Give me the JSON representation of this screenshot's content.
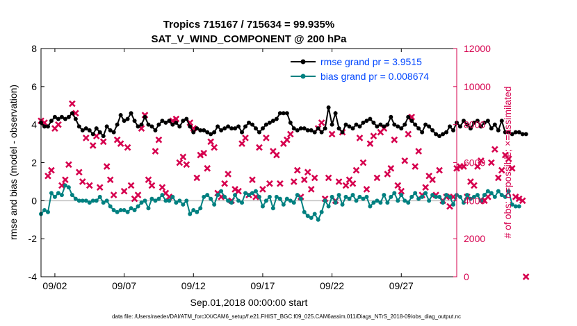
{
  "chart_data": {
    "type": "line",
    "title": "Tropics 715167 / 715634 = 99.935%",
    "subtitle": "SAT_V_WIND_COMPONENT @ 200 hPa",
    "xlabel": "Sep.01,2018 00:00:00 start",
    "ylabel_left": "rmse and bias (model - observation)",
    "ylabel_right": "# of obs: o=possible; ×=assimilated",
    "xlim": [
      0.5,
      30.5
    ],
    "ylim_left": [
      -4,
      8
    ],
    "ylim_right": [
      0,
      12000
    ],
    "x_ticks": [
      1.5,
      6.5,
      11.5,
      16.5,
      21.5,
      26.5
    ],
    "x_tick_labels": [
      "09/02",
      "09/07",
      "09/12",
      "09/17",
      "09/22",
      "09/27"
    ],
    "y_ticks_left": [
      -4,
      -2,
      0,
      2,
      4,
      6,
      8
    ],
    "y_ticks_right": [
      0,
      2000,
      4000,
      6000,
      8000,
      10000,
      12000
    ],
    "footer": "data file: /Users/raeder/DAI/ATM_forcXX/CAM6_setup/f.e21.FHIST_BGC.f09_025.CAM6assim.011/Diags_NTrS_2018-09/obs_diag_output.nc",
    "colors": {
      "rmse": "#000000",
      "bias": "#008080",
      "obs": "#d6004e",
      "zero": "#bfbfbf",
      "legend_text": "#0046ff"
    },
    "series": [
      {
        "name": "rmse grand pr = 3.9515",
        "axis": "left",
        "x0": 0.5,
        "dx": 0.25,
        "values": [
          4.1,
          3.9,
          3.9,
          4.2,
          4.4,
          4.3,
          4.4,
          4.3,
          4.4,
          4.6,
          4.3,
          3.9,
          3.7,
          3.8,
          3.7,
          3.5,
          3.8,
          3.6,
          3.4,
          3.9,
          3.7,
          3.6,
          4.0,
          4.5,
          4.2,
          4.3,
          4.6,
          4.2,
          3.9,
          4.0,
          4.4,
          4.0,
          3.9,
          3.7,
          4.0,
          4.2,
          4.1,
          4.2,
          4.0,
          4.1,
          3.9,
          4.2,
          4.3,
          3.9,
          3.6,
          3.8,
          3.7,
          3.7,
          3.6,
          3.5,
          3.6,
          3.9,
          3.7,
          3.8,
          3.9,
          3.8,
          3.8,
          3.9,
          3.6,
          3.9,
          4.1,
          4.0,
          3.8,
          3.6,
          3.8,
          4.0,
          4.1,
          4.2,
          4.3,
          4.6,
          4.6,
          4.6,
          4.1,
          3.8,
          3.7,
          3.8,
          3.8,
          3.7,
          3.7,
          3.6,
          3.8,
          3.6,
          3.8,
          4.9,
          4.0,
          4.6,
          3.8,
          3.6,
          4.0,
          3.9,
          3.8,
          4.0,
          3.9,
          4.1,
          4.2,
          4.3,
          4.1,
          3.9,
          4.0,
          3.9,
          4.0,
          4.4,
          4.0,
          3.9,
          3.8,
          4.0,
          4.4,
          4.2,
          4.0,
          3.8,
          3.6,
          4.0,
          3.9,
          3.7,
          3.5,
          3.4,
          3.5,
          3.6,
          3.9,
          3.7,
          4.1,
          3.9,
          4.2,
          4.0,
          3.8,
          4.1,
          4.2,
          3.9,
          4.1,
          4.2,
          3.8,
          4.0,
          3.7,
          4.2,
          3.6,
          3.6,
          3.5,
          3.6,
          3.6,
          3.5,
          3.5
        ]
      },
      {
        "name": "bias grand pr = 0.008674",
        "axis": "left",
        "x0": 0.5,
        "dx": 0.25,
        "values": [
          -0.7,
          -0.5,
          -0.6,
          0.4,
          0.2,
          0.4,
          0.3,
          0.8,
          0.7,
          0.3,
          0.1,
          0.0,
          0.0,
          0.0,
          -0.1,
          0.0,
          0.0,
          0.2,
          -0.1,
          0.0,
          -0.3,
          -0.5,
          -0.6,
          -0.5,
          -0.5,
          -0.6,
          -0.4,
          -0.5,
          -0.3,
          -0.1,
          0.0,
          -0.4,
          0.1,
          0.0,
          0.1,
          0.3,
          0.0,
          0.0,
          0.2,
          -0.1,
          0.0,
          -0.2,
          0.0,
          -0.7,
          -0.5,
          -0.6,
          -0.4,
          0.2,
          0.3,
          0.1,
          -0.2,
          0.3,
          0.5,
          0.2,
          0.0,
          -0.1,
          0.3,
          0.0,
          -0.1,
          0.4,
          0.3,
          0.4,
          0.5,
          0.2,
          -0.3,
          0.0,
          0.2,
          -0.4,
          0.2,
          0.1,
          -0.2,
          0.1,
          0.0,
          -0.1,
          0.3,
          0.1,
          -0.6,
          -0.8,
          -0.9,
          -0.7,
          -1.0,
          -0.6,
          0.0,
          -0.3,
          0.2,
          -0.1,
          0.3,
          -0.2,
          0.2,
          0.1,
          0.3,
          0.0,
          0.2,
          0.1,
          0.2,
          -0.3,
          -0.1,
          0.0,
          -0.1,
          0.3,
          -0.1,
          0.2,
          0.4,
          0.0,
          0.3,
          0.0,
          -0.1,
          0.2,
          0.4,
          0.1,
          0.2,
          0.4,
          0.0,
          0.3,
          0.2,
          0.2,
          -0.1,
          0.3,
          0.2,
          -0.2,
          0.3,
          0.2,
          -0.1,
          0.3,
          0.1,
          0.2,
          0.3,
          0.0,
          0.3,
          0.5,
          0.4,
          0.2,
          0.5,
          0.3,
          0.2,
          0.5,
          -0.2,
          -0.3,
          -0.3
        ]
      },
      {
        "name": "obs assimilated",
        "axis": "right",
        "marker": "x",
        "x0": 0.5,
        "dx": 0.25,
        "values": [
          8200,
          8100,
          5300,
          5600,
          7800,
          8000,
          4800,
          5100,
          5900,
          9100,
          8600,
          5500,
          5000,
          7300,
          4800,
          6900,
          7400,
          4700,
          7100,
          5800,
          5100,
          4300,
          7200,
          7000,
          4500,
          6800,
          4800,
          4100,
          4300,
          7800,
          8500,
          5100,
          4800,
          6600,
          7200,
          4700,
          4400,
          4200,
          8200,
          8300,
          6000,
          6300,
          5900,
          8100,
          7800,
          5200,
          6400,
          6500,
          5700,
          7100,
          6800,
          4400,
          4200,
          4900,
          5400,
          4000,
          4600,
          4500,
          7000,
          7300,
          4300,
          5100,
          4200,
          6800,
          4600,
          7300,
          4900,
          6600,
          6400,
          4900,
          7000,
          7200,
          7500,
          5000,
          5600,
          4200,
          5100,
          5500,
          4600,
          5200,
          7800,
          8100,
          4100,
          5200,
          7500,
          4000,
          5000,
          7600,
          4800,
          5100,
          4900,
          5600,
          7300,
          6000,
          4600,
          7000,
          7400,
          5200,
          7600,
          7800,
          5400,
          5700,
          7200,
          4800,
          4500,
          6100,
          7500,
          8400,
          5800,
          6600,
          4300,
          4700,
          5300,
          5100,
          4300,
          5600,
          4000,
          4200,
          3700,
          4200,
          5700,
          5800,
          5800,
          4200,
          5000,
          4800,
          5800,
          6100,
          4000,
          4200,
          6000,
          6700,
          5200,
          5600,
          6400,
          6200,
          5700,
          4200,
          4100,
          4000,
          0
        ]
      }
    ]
  }
}
